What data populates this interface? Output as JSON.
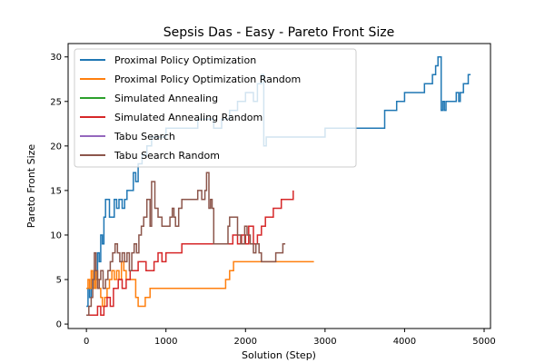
{
  "chart_data": {
    "type": "line",
    "title": "Sepsis Das - Easy - Pareto Front Size",
    "xlabel": "Solution (Step)",
    "ylabel": "Pareto Front Size",
    "xlim": [
      -230,
      5080
    ],
    "ylim": [
      -0.5,
      31.5
    ],
    "xticks": [
      0,
      1000,
      2000,
      3000,
      4000,
      5000
    ],
    "yticks": [
      0,
      5,
      10,
      15,
      20,
      25,
      30
    ],
    "grid": false,
    "legend_position": "top-left",
    "series": [
      {
        "name": "Proximal Policy Optimization",
        "color": "#1f77b4",
        "points": [
          [
            0,
            2
          ],
          [
            20,
            4
          ],
          [
            40,
            3
          ],
          [
            60,
            5
          ],
          [
            80,
            4
          ],
          [
            100,
            6
          ],
          [
            120,
            5
          ],
          [
            140,
            8
          ],
          [
            160,
            7
          ],
          [
            180,
            10
          ],
          [
            200,
            9
          ],
          [
            220,
            12
          ],
          [
            240,
            14
          ],
          [
            270,
            14
          ],
          [
            290,
            12
          ],
          [
            330,
            12
          ],
          [
            350,
            14
          ],
          [
            380,
            13
          ],
          [
            410,
            14
          ],
          [
            450,
            13
          ],
          [
            480,
            14
          ],
          [
            510,
            15
          ],
          [
            540,
            15
          ],
          [
            570,
            15
          ],
          [
            590,
            17
          ],
          [
            620,
            16
          ],
          [
            650,
            18
          ],
          [
            700,
            19
          ],
          [
            760,
            20
          ],
          [
            820,
            21
          ],
          [
            900,
            21
          ],
          [
            1000,
            22
          ],
          [
            1100,
            22
          ],
          [
            1200,
            22
          ],
          [
            1300,
            22
          ],
          [
            1400,
            23
          ],
          [
            1500,
            23
          ],
          [
            1600,
            22
          ],
          [
            1700,
            23
          ],
          [
            1800,
            24
          ],
          [
            1900,
            25
          ],
          [
            2000,
            26
          ],
          [
            2100,
            25
          ],
          [
            2150,
            27
          ],
          [
            2200,
            28
          ],
          [
            2230,
            20
          ],
          [
            2260,
            21
          ],
          [
            2600,
            21
          ],
          [
            3000,
            22
          ],
          [
            3700,
            22
          ],
          [
            3750,
            24
          ],
          [
            3900,
            25
          ],
          [
            4000,
            26
          ],
          [
            4200,
            26
          ],
          [
            4250,
            27
          ],
          [
            4350,
            28
          ],
          [
            4390,
            29
          ],
          [
            4420,
            30
          ],
          [
            4450,
            30
          ],
          [
            4460,
            24
          ],
          [
            4480,
            25
          ],
          [
            4500,
            24
          ],
          [
            4520,
            25
          ],
          [
            4600,
            25
          ],
          [
            4650,
            26
          ],
          [
            4680,
            25
          ],
          [
            4700,
            26
          ],
          [
            4740,
            27
          ],
          [
            4780,
            27
          ],
          [
            4800,
            28
          ],
          [
            4830,
            28
          ]
        ]
      },
      {
        "name": "Proximal Policy Optimization Random",
        "color": "#ff7f0e",
        "points": [
          [
            0,
            4
          ],
          [
            20,
            5
          ],
          [
            40,
            4
          ],
          [
            60,
            6
          ],
          [
            80,
            5
          ],
          [
            100,
            4
          ],
          [
            120,
            6
          ],
          [
            140,
            5
          ],
          [
            160,
            4
          ],
          [
            180,
            3
          ],
          [
            200,
            2
          ],
          [
            230,
            3
          ],
          [
            260,
            4
          ],
          [
            290,
            5
          ],
          [
            320,
            6
          ],
          [
            350,
            5
          ],
          [
            380,
            6
          ],
          [
            410,
            5
          ],
          [
            440,
            7
          ],
          [
            470,
            6
          ],
          [
            500,
            5
          ],
          [
            540,
            5
          ],
          [
            580,
            5
          ],
          [
            620,
            3
          ],
          [
            650,
            2
          ],
          [
            700,
            2
          ],
          [
            740,
            3
          ],
          [
            780,
            3
          ],
          [
            800,
            4
          ],
          [
            900,
            4
          ],
          [
            1000,
            4
          ],
          [
            1200,
            4
          ],
          [
            1400,
            4
          ],
          [
            1600,
            4
          ],
          [
            1730,
            4
          ],
          [
            1750,
            5
          ],
          [
            1800,
            6
          ],
          [
            1850,
            7
          ],
          [
            1950,
            7
          ],
          [
            2200,
            7
          ],
          [
            2600,
            7
          ],
          [
            2860,
            7
          ]
        ]
      },
      {
        "name": "Simulated Annealing",
        "color": "#2ca02c",
        "points": []
      },
      {
        "name": "Simulated Annealing Random",
        "color": "#d62728",
        "points": [
          [
            0,
            1
          ],
          [
            100,
            1
          ],
          [
            140,
            2
          ],
          [
            180,
            1
          ],
          [
            220,
            2
          ],
          [
            260,
            3
          ],
          [
            300,
            2
          ],
          [
            340,
            4
          ],
          [
            400,
            5
          ],
          [
            450,
            4
          ],
          [
            500,
            5
          ],
          [
            550,
            6
          ],
          [
            600,
            6
          ],
          [
            650,
            7
          ],
          [
            700,
            7
          ],
          [
            750,
            6
          ],
          [
            800,
            6
          ],
          [
            850,
            7
          ],
          [
            900,
            8
          ],
          [
            950,
            7
          ],
          [
            1000,
            8
          ],
          [
            1100,
            8
          ],
          [
            1200,
            9
          ],
          [
            1300,
            9
          ],
          [
            1400,
            9
          ],
          [
            1500,
            9
          ],
          [
            1600,
            9
          ],
          [
            1700,
            9
          ],
          [
            1800,
            9
          ],
          [
            1840,
            10
          ],
          [
            1900,
            9
          ],
          [
            1950,
            10
          ],
          [
            2000,
            9
          ],
          [
            2040,
            11
          ],
          [
            2100,
            9
          ],
          [
            2150,
            10
          ],
          [
            2200,
            11
          ],
          [
            2250,
            12
          ],
          [
            2300,
            12
          ],
          [
            2350,
            13
          ],
          [
            2400,
            13
          ],
          [
            2450,
            14
          ],
          [
            2500,
            14
          ],
          [
            2550,
            14
          ],
          [
            2600,
            15
          ]
        ]
      },
      {
        "name": "Tabu Search",
        "color": "#9467bd",
        "points": []
      },
      {
        "name": "Tabu Search Random",
        "color": "#8c564b",
        "points": [
          [
            0,
            1
          ],
          [
            30,
            2
          ],
          [
            60,
            3
          ],
          [
            80,
            5
          ],
          [
            100,
            8
          ],
          [
            120,
            6
          ],
          [
            140,
            4
          ],
          [
            160,
            5
          ],
          [
            180,
            6
          ],
          [
            210,
            4
          ],
          [
            240,
            5
          ],
          [
            270,
            6
          ],
          [
            300,
            7
          ],
          [
            330,
            8
          ],
          [
            360,
            9
          ],
          [
            390,
            8
          ],
          [
            420,
            7
          ],
          [
            450,
            8
          ],
          [
            480,
            7
          ],
          [
            510,
            8
          ],
          [
            540,
            6
          ],
          [
            570,
            8
          ],
          [
            600,
            9
          ],
          [
            630,
            8
          ],
          [
            660,
            10
          ],
          [
            690,
            11
          ],
          [
            720,
            12
          ],
          [
            760,
            14
          ],
          [
            800,
            11
          ],
          [
            820,
            16
          ],
          [
            860,
            13
          ],
          [
            900,
            12
          ],
          [
            950,
            11
          ],
          [
            1000,
            11
          ],
          [
            1050,
            12
          ],
          [
            1080,
            13
          ],
          [
            1100,
            12
          ],
          [
            1120,
            11
          ],
          [
            1160,
            13
          ],
          [
            1200,
            14
          ],
          [
            1300,
            14
          ],
          [
            1400,
            15
          ],
          [
            1450,
            14
          ],
          [
            1490,
            15
          ],
          [
            1510,
            17
          ],
          [
            1540,
            13
          ],
          [
            1560,
            14
          ],
          [
            1580,
            13
          ],
          [
            1600,
            9
          ],
          [
            1700,
            9
          ],
          [
            1780,
            11
          ],
          [
            1800,
            12
          ],
          [
            1880,
            12
          ],
          [
            1900,
            10
          ],
          [
            1940,
            9
          ],
          [
            1990,
            11
          ],
          [
            2020,
            10
          ],
          [
            2060,
            9
          ],
          [
            2100,
            8
          ],
          [
            2130,
            9
          ],
          [
            2170,
            8
          ],
          [
            2200,
            7
          ],
          [
            2300,
            7
          ],
          [
            2360,
            7
          ],
          [
            2380,
            8
          ],
          [
            2420,
            8
          ],
          [
            2440,
            8
          ],
          [
            2470,
            9
          ],
          [
            2500,
            9
          ]
        ]
      }
    ]
  }
}
